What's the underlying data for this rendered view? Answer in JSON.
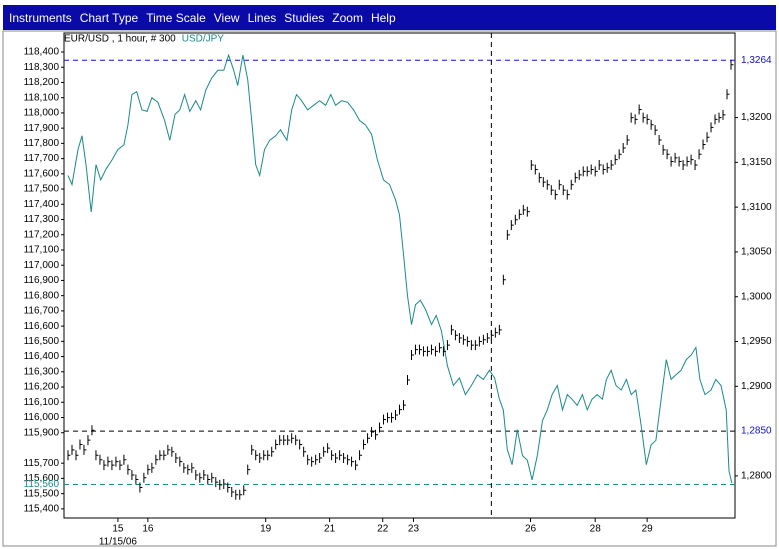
{
  "menu": [
    "Instruments",
    "Chart Type",
    "Time Scale",
    "View",
    "Lines",
    "Studies",
    "Zoom",
    "Help"
  ],
  "chart_data": {
    "type": "line",
    "xlim": [
      0,
      84
    ],
    "xticks": [
      {
        "value": 6.75,
        "label": "15"
      },
      {
        "value": 10.5,
        "label": "16"
      },
      {
        "value": 25.25,
        "label": "19"
      },
      {
        "value": 33.25,
        "label": "21"
      },
      {
        "value": 39.9,
        "label": "22"
      },
      {
        "value": 43.75,
        "label": "23"
      },
      {
        "value": 58.4,
        "label": "26"
      },
      {
        "value": 66.5,
        "label": "28"
      },
      {
        "value": 73,
        "label": "29"
      }
    ],
    "x_date_label": "11/15/06",
    "ylim": [
      115340,
      118446
    ],
    "yticks": [
      {
        "value": 118400,
        "label": "118,400"
      },
      {
        "value": 118300,
        "label": "118,300"
      },
      {
        "value": 118200,
        "label": "118,200"
      },
      {
        "value": 118100,
        "label": "118,100"
      },
      {
        "value": 118000,
        "label": "118,000"
      },
      {
        "value": 117900,
        "label": "117,900"
      },
      {
        "value": 117800,
        "label": "117,800"
      },
      {
        "value": 117700,
        "label": "117,700"
      },
      {
        "value": 117600,
        "label": "117,600"
      },
      {
        "value": 117500,
        "label": "117,500"
      },
      {
        "value": 117400,
        "label": "117,400"
      },
      {
        "value": 117300,
        "label": "117,300"
      },
      {
        "value": 117200,
        "label": "117,200"
      },
      {
        "value": 117100,
        "label": "117,100"
      },
      {
        "value": 117000,
        "label": "117,000"
      },
      {
        "value": 116900,
        "label": "116,900"
      },
      {
        "value": 116800,
        "label": "116,800"
      },
      {
        "value": 116700,
        "label": "116,700"
      },
      {
        "value": 116600,
        "label": "116,600"
      },
      {
        "value": 116500,
        "label": "116,500"
      },
      {
        "value": 116400,
        "label": "116,400"
      },
      {
        "value": 116300,
        "label": "116,300"
      },
      {
        "value": 116200,
        "label": "116,200"
      },
      {
        "value": 116100,
        "label": "116,100"
      },
      {
        "value": 116000,
        "label": "116,000"
      },
      {
        "value": 115900,
        "label": "115,900"
      },
      {
        "value": 115700,
        "label": "115,700"
      },
      {
        "value": 115600,
        "label": "115,600"
      },
      {
        "value": 115500,
        "label": "115,500"
      },
      {
        "value": 115400,
        "label": "115,400"
      }
    ],
    "y2lim": [
      1.2753,
      1.3281
    ],
    "y2ticks": [
      {
        "value": 1.28,
        "label": "1,2800"
      },
      {
        "value": 1.29,
        "label": "1,2900"
      },
      {
        "value": 1.295,
        "label": "1,2950"
      },
      {
        "value": 1.3,
        "label": "1,3000"
      },
      {
        "value": 1.305,
        "label": "1,3050"
      },
      {
        "value": 1.31,
        "label": "1,3100"
      },
      {
        "value": 1.315,
        "label": "1,3150"
      },
      {
        "value": 1.32,
        "label": "1,3200"
      }
    ],
    "reference_lines": [
      {
        "axis": "y2",
        "value": 1.3264,
        "label": "1,3264",
        "color": "#1010c0"
      },
      {
        "axis": "y2",
        "value": 1.285,
        "label": "1,2850",
        "color": "#1010c0"
      },
      {
        "axis": "y",
        "value": 115560,
        "label": "115,560",
        "color": "#1a8a8a"
      }
    ],
    "cursor_x": 53.5,
    "series": [
      {
        "name": "USD/JPY",
        "color": "#1a8a8a",
        "style": "line",
        "x": [
          0.5,
          1,
          1.75,
          2.25,
          2.75,
          3.4,
          4,
          4.6,
          5.25,
          6,
          6.75,
          7.5,
          8,
          8.5,
          9.1,
          9.75,
          10.4,
          11,
          11.75,
          12.6,
          13.25,
          13.9,
          14.5,
          15.1,
          15.75,
          16.5,
          17.1,
          17.75,
          18.5,
          19.25,
          20,
          20.6,
          21.25,
          21.75,
          22.4,
          23,
          23.5,
          24,
          24.5,
          25.1,
          25.75,
          26.5,
          27.1,
          27.9,
          28.5,
          29.1,
          29.75,
          30.5,
          31.25,
          32,
          32.75,
          33.4,
          34,
          34.75,
          35.5,
          36.25,
          37,
          37.75,
          38.5,
          39.25,
          40,
          40.75,
          41.5,
          42,
          42.5,
          43,
          43.5,
          44,
          44.6,
          45.25,
          46,
          46.6,
          47.25,
          48,
          48.75,
          49.5,
          50.25,
          51,
          51.75,
          52.5,
          53.25,
          53.9,
          54.5,
          55,
          55.5,
          56.1,
          56.75,
          57.4,
          58,
          58.6,
          59.25,
          59.9,
          60.5,
          61.1,
          61.75,
          62.4,
          63,
          63.6,
          64.25,
          64.9,
          65.5,
          66.1,
          66.75,
          67.4,
          67.9,
          68.5,
          69.1,
          69.75,
          70.4,
          71,
          71.6,
          72.25,
          72.9,
          73.5,
          74.1,
          74.75,
          75.4,
          76,
          76.6,
          77.25,
          77.9,
          78.5,
          79.1,
          79.6,
          80.25,
          81,
          81.6,
          82.25,
          82.9,
          83.25,
          83.6
        ],
        "values": [
          117590,
          117530,
          117760,
          117850,
          117660,
          117350,
          117660,
          117560,
          117630,
          117690,
          117760,
          117790,
          117920,
          118120,
          118140,
          118020,
          118010,
          118100,
          118070,
          117950,
          117820,
          117990,
          118020,
          118120,
          118010,
          118080,
          118020,
          118150,
          118230,
          118280,
          118280,
          118380,
          118280,
          118180,
          118380,
          118220,
          117950,
          117660,
          117590,
          117760,
          117820,
          117850,
          117890,
          117820,
          118020,
          118120,
          118080,
          118020,
          118050,
          118080,
          118050,
          118120,
          118050,
          118080,
          118070,
          118020,
          117950,
          117920,
          117860,
          117690,
          117560,
          117530,
          117430,
          117330,
          117070,
          116800,
          116610,
          116740,
          116770,
          116710,
          116610,
          116670,
          116570,
          116340,
          116210,
          116260,
          116150,
          116210,
          116280,
          116250,
          116310,
          116260,
          116120,
          116050,
          115790,
          115690,
          115920,
          115750,
          115720,
          115590,
          115750,
          115980,
          116050,
          116150,
          116210,
          116050,
          116150,
          116120,
          116080,
          116150,
          116050,
          116120,
          116150,
          116120,
          116250,
          116310,
          116210,
          116180,
          116250,
          116150,
          116180,
          115950,
          115690,
          115820,
          115850,
          116120,
          116380,
          116250,
          116280,
          116310,
          116380,
          116410,
          116460,
          116250,
          116150,
          116180,
          116250,
          116210,
          116050,
          115650,
          115570
        ]
      },
      {
        "name": "EUR/USD , 1 hour, # 300",
        "color": "#000000",
        "style": "bars",
        "axis": "y2",
        "x": [
          0.5,
          1,
          1.5,
          2,
          2.5,
          3,
          3.5,
          4,
          4.5,
          5,
          5.5,
          6,
          6.5,
          7,
          7.5,
          8,
          8.5,
          9,
          9.5,
          10,
          10.5,
          11,
          11.5,
          12,
          12.5,
          13,
          13.5,
          14,
          14.5,
          15,
          15.5,
          16,
          16.5,
          17,
          17.5,
          18,
          18.5,
          19,
          19.5,
          20,
          20.5,
          21,
          21.5,
          22,
          22.5,
          23,
          23.5,
          24,
          24.5,
          25,
          25.5,
          26,
          26.5,
          27,
          27.5,
          28,
          28.5,
          29,
          29.5,
          30,
          30.5,
          31,
          31.5,
          32,
          32.5,
          33,
          33.5,
          34,
          34.5,
          35,
          35.5,
          36,
          36.5,
          37,
          37.5,
          38,
          38.5,
          39,
          39.5,
          40,
          40.5,
          41,
          41.5,
          42,
          42.5,
          43,
          43.5,
          44,
          44.5,
          45,
          45.5,
          46,
          46.5,
          47,
          47.5,
          48,
          48.5,
          49,
          49.5,
          50,
          50.5,
          51,
          51.5,
          52,
          52.5,
          53,
          53.5,
          54,
          54.5,
          55,
          55.5,
          56,
          56.5,
          57,
          57.5,
          58,
          58.5,
          59,
          59.5,
          60,
          60.5,
          61,
          61.5,
          62,
          62.5,
          63,
          63.5,
          64,
          64.5,
          65,
          65.5,
          66,
          66.5,
          67,
          67.5,
          68,
          68.5,
          69,
          69.5,
          70,
          70.5,
          71,
          71.5,
          72,
          72.5,
          73,
          73.5,
          74,
          74.5,
          75,
          75.5,
          76,
          76.5,
          77,
          77.5,
          78,
          78.5,
          79,
          79.5,
          80,
          80.5,
          81,
          81.5,
          82,
          82.5,
          83,
          83.5
        ],
        "values": [
          1.2823,
          1.2829,
          1.2823,
          1.2835,
          1.2829,
          1.284,
          1.2851,
          1.2823,
          1.2818,
          1.2812,
          1.2816,
          1.2812,
          1.2816,
          1.2812,
          1.2818,
          1.2807,
          1.2801,
          1.2796,
          1.2787,
          1.2798,
          1.2807,
          1.2809,
          1.2818,
          1.2823,
          1.2823,
          1.2829,
          1.2827,
          1.282,
          1.2816,
          1.2809,
          1.2807,
          1.2809,
          1.2801,
          1.2798,
          1.2801,
          1.2796,
          1.2798,
          1.2793,
          1.279,
          1.2791,
          1.2787,
          1.2782,
          1.2779,
          1.2779,
          1.2784,
          1.2807,
          1.2829,
          1.2823,
          1.282,
          1.2823,
          1.2823,
          1.2827,
          1.2835,
          1.284,
          1.284,
          1.284,
          1.2842,
          1.284,
          1.2835,
          1.2827,
          1.2818,
          1.2816,
          1.2818,
          1.282,
          1.2827,
          1.2831,
          1.2823,
          1.282,
          1.2823,
          1.282,
          1.2818,
          1.2816,
          1.2812,
          1.2823,
          1.2835,
          1.2842,
          1.2849,
          1.2846,
          1.2854,
          1.2863,
          1.2865,
          1.2865,
          1.2868,
          1.2874,
          1.2879,
          1.2907,
          1.2935,
          1.2941,
          1.2941,
          1.2939,
          1.2939,
          1.2941,
          1.2939,
          1.2943,
          1.2939,
          1.2946,
          1.2963,
          1.2957,
          1.2954,
          1.2952,
          1.295,
          1.2946,
          1.2946,
          1.295,
          1.2952,
          1.2954,
          1.2957,
          1.296,
          1.2963,
          1.3019,
          1.3069,
          1.308,
          1.3086,
          1.3092,
          1.3097,
          1.3095,
          1.3147,
          1.3142,
          1.3133,
          1.3128,
          1.3125,
          1.3119,
          1.3114,
          1.3125,
          1.3119,
          1.3114,
          1.3125,
          1.3133,
          1.3136,
          1.314,
          1.314,
          1.3142,
          1.314,
          1.3147,
          1.3142,
          1.3144,
          1.3147,
          1.3153,
          1.3159,
          1.3166,
          1.3175,
          1.32,
          1.3198,
          1.3209,
          1.32,
          1.3198,
          1.3192,
          1.3186,
          1.3175,
          1.3164,
          1.3159,
          1.3151,
          1.3155,
          1.3151,
          1.3147,
          1.3151,
          1.3153,
          1.3147,
          1.3159,
          1.317,
          1.3178,
          1.3189,
          1.3198,
          1.32,
          1.3203,
          1.3226,
          1.3259
        ]
      }
    ]
  }
}
